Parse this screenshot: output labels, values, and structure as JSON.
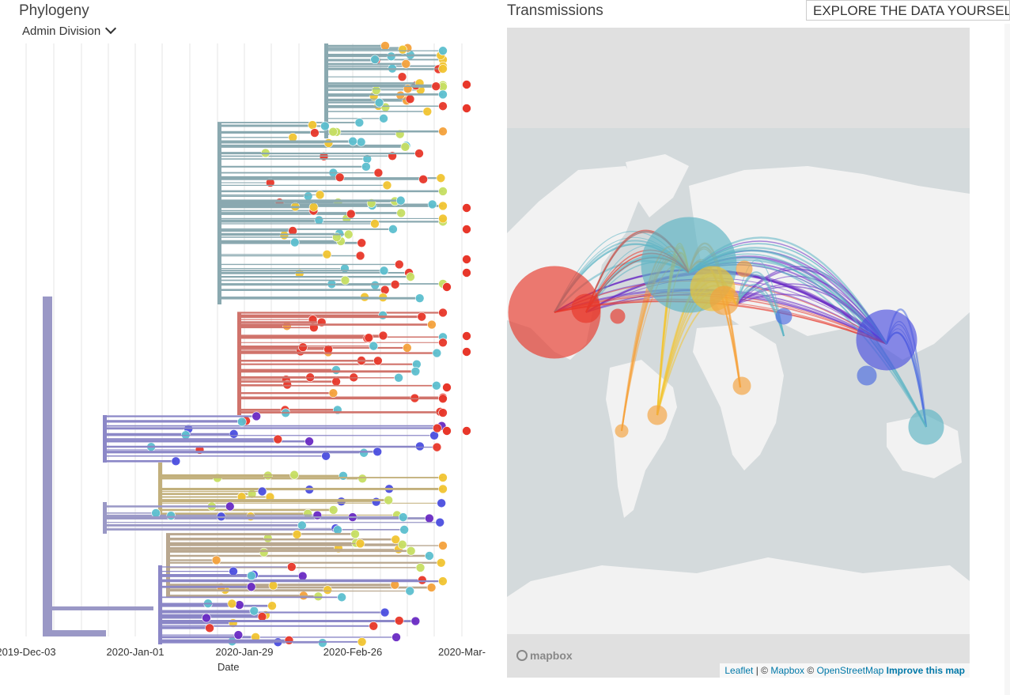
{
  "phylogeny": {
    "title": "Phylogeny",
    "color_by": "Admin Division",
    "axis": {
      "title": "Date",
      "ticks": [
        "2019-Dec-03",
        "2020-Jan-01",
        "2020-Jan-29",
        "2020-Feb-26",
        "2020-Mar-"
      ]
    }
  },
  "transmissions": {
    "title": "Transmissions",
    "mapbox_logo": "mapbox",
    "attribution": {
      "leaflet": "Leaflet",
      "sep1": " | © ",
      "mapbox": "Mapbox",
      "sep2": " © ",
      "osm": "OpenStreetMap",
      "improve": "Improve this map"
    }
  },
  "explore_button": "EXPLORE THE DATA YOURSELF",
  "colors": {
    "red": "#e8372a",
    "orange": "#f5a23c",
    "yellow": "#f2c531",
    "lime": "#c7df63",
    "teal": "#5cbfcf",
    "blue": "#4b4fe0",
    "purple": "#6a2bc4",
    "gray_branch": "#8aa9b0",
    "tree_root": "#9a98c6",
    "map_land": "#f2f2f2",
    "map_water": "#d4dadc"
  }
}
